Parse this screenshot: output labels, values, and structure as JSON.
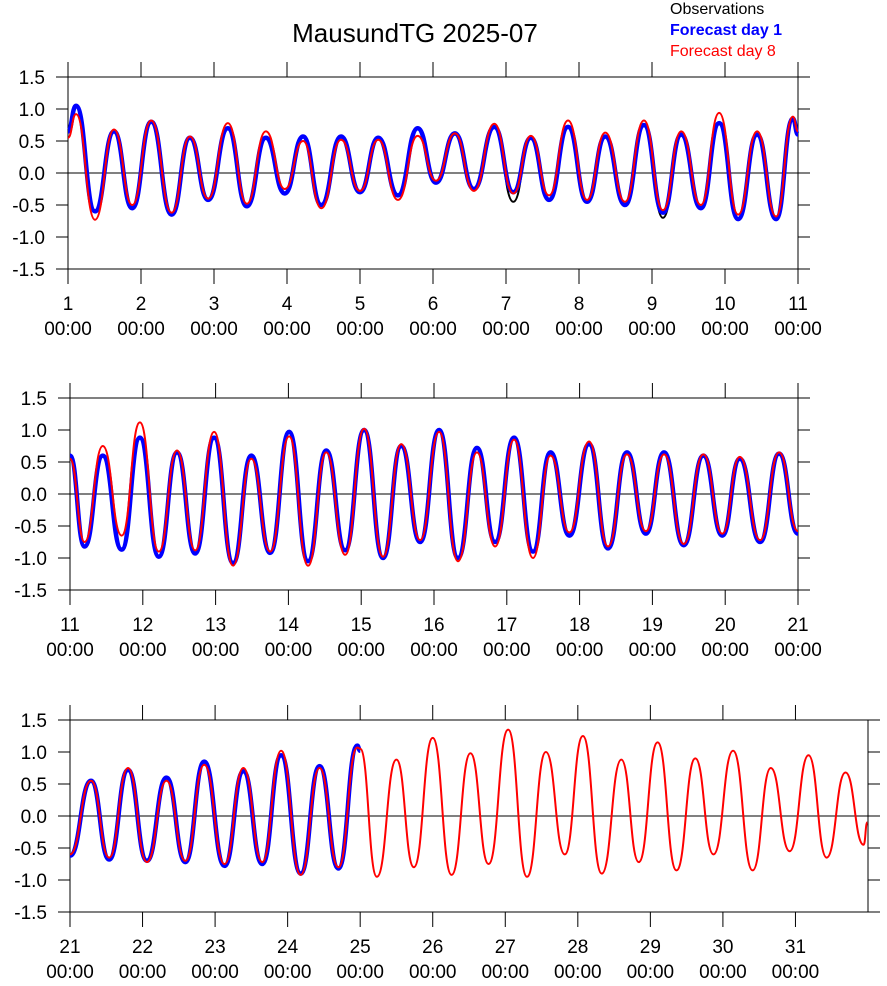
{
  "chart_data": [
    {
      "type": "line",
      "title": "MausundTG 2025-07",
      "legend": "upper right",
      "xlim": [
        1,
        11
      ],
      "ylim": [
        -1.5,
        1.5
      ],
      "xticks": [
        {
          "value": 1,
          "label": "1\n00:00"
        },
        {
          "value": 2,
          "label": "2\n00:00"
        },
        {
          "value": 3,
          "label": "3\n00:00"
        },
        {
          "value": 4,
          "label": "4\n00:00"
        },
        {
          "value": 5,
          "label": "5\n00:00"
        },
        {
          "value": 6,
          "label": "6\n00:00"
        },
        {
          "value": 7,
          "label": "7\n00:00"
        },
        {
          "value": 8,
          "label": "8\n00:00"
        },
        {
          "value": 9,
          "label": "9\n00:00"
        },
        {
          "value": 10,
          "label": "10\n00:00"
        },
        {
          "value": 11,
          "label": "11\n00:00"
        }
      ],
      "yticks": [
        -1.5,
        {
          "value": -1,
          "label": "-1.0"
        },
        -0.5,
        {
          "value": 0,
          "label": "0.0"
        },
        0.5,
        {
          "value": 1,
          "label": "1.0"
        },
        1.5
      ],
      "x": [
        1.0,
        1.11,
        1.37,
        1.63,
        1.88,
        2.14,
        2.42,
        2.67,
        2.92,
        3.19,
        3.45,
        3.71,
        3.97,
        4.22,
        4.47,
        4.74,
        5.0,
        5.25,
        5.52,
        5.79,
        6.04,
        6.3,
        6.56,
        6.84,
        7.1,
        7.34,
        7.59,
        7.85,
        8.11,
        8.36,
        8.63,
        8.89,
        9.15,
        9.4,
        9.67,
        9.92,
        10.18,
        10.44,
        10.7,
        10.93,
        11.0
      ],
      "series": [
        {
          "name": "Observations",
          "color": "#000000",
          "values": [
            0.65,
            1.05,
            -0.6,
            0.65,
            -0.55,
            0.8,
            -0.65,
            0.55,
            -0.42,
            0.7,
            -0.52,
            0.55,
            -0.32,
            0.57,
            -0.5,
            0.57,
            -0.3,
            0.55,
            -0.35,
            0.7,
            -0.15,
            0.62,
            -0.25,
            0.72,
            -0.45,
            0.55,
            -0.42,
            0.72,
            -0.45,
            0.57,
            -0.5,
            0.75,
            -0.7,
            0.6,
            -0.55,
            0.78,
            -0.72,
            0.6,
            -0.72,
            0.85,
            0.6
          ]
        },
        {
          "name": "Forecast day 1",
          "color": "#0000ff",
          "values": [
            0.65,
            1.05,
            -0.6,
            0.65,
            -0.55,
            0.8,
            -0.65,
            0.55,
            -0.42,
            0.7,
            -0.52,
            0.55,
            -0.32,
            0.57,
            -0.5,
            0.57,
            -0.3,
            0.55,
            -0.35,
            0.7,
            -0.15,
            0.62,
            -0.25,
            0.72,
            -0.3,
            0.55,
            -0.42,
            0.72,
            -0.45,
            0.57,
            -0.5,
            0.75,
            -0.62,
            0.6,
            -0.55,
            0.78,
            -0.72,
            0.6,
            -0.72,
            0.85,
            0.6
          ]
        },
        {
          "name": "Forecast day 8",
          "color": "#ff0000",
          "values": [
            0.55,
            0.92,
            -0.73,
            0.68,
            -0.5,
            0.82,
            -0.62,
            0.57,
            -0.4,
            0.78,
            -0.48,
            0.65,
            -0.25,
            0.5,
            -0.55,
            0.52,
            -0.28,
            0.52,
            -0.42,
            0.58,
            -0.12,
            0.62,
            -0.28,
            0.77,
            -0.32,
            0.58,
            -0.35,
            0.82,
            -0.42,
            0.63,
            -0.45,
            0.82,
            -0.58,
            0.65,
            -0.5,
            0.94,
            -0.65,
            0.65,
            -0.68,
            0.88,
            0.65
          ]
        }
      ]
    },
    {
      "type": "line",
      "xlim": [
        11,
        21
      ],
      "ylim": [
        -1.5,
        1.5
      ],
      "xticks": [
        {
          "value": 11,
          "label": "11\n00:00"
        },
        {
          "value": 12,
          "label": "12\n00:00"
        },
        {
          "value": 13,
          "label": "13\n00:00"
        },
        {
          "value": 14,
          "label": "14\n00:00"
        },
        {
          "value": 15,
          "label": "15\n00:00"
        },
        {
          "value": 16,
          "label": "16\n00:00"
        },
        {
          "value": 17,
          "label": "17\n00:00"
        },
        {
          "value": 18,
          "label": "18\n00:00"
        },
        {
          "value": 19,
          "label": "19\n00:00"
        },
        {
          "value": 20,
          "label": "20\n00:00"
        },
        {
          "value": 21,
          "label": "21\n00:00"
        }
      ],
      "yticks": [
        -1.5,
        {
          "value": -1,
          "label": "-1.0"
        },
        -0.5,
        {
          "value": 0,
          "label": "0.0"
        },
        0.5,
        {
          "value": 1,
          "label": "1.0"
        },
        1.5
      ],
      "x": [
        11.0,
        11.2,
        11.45,
        11.71,
        11.96,
        12.22,
        12.47,
        12.72,
        12.98,
        13.24,
        13.49,
        13.75,
        14.01,
        14.27,
        14.52,
        14.78,
        15.04,
        15.3,
        15.55,
        15.81,
        16.07,
        16.33,
        16.59,
        16.84,
        17.1,
        17.36,
        17.6,
        17.86,
        18.13,
        18.39,
        18.65,
        18.91,
        19.16,
        19.43,
        19.7,
        19.96,
        20.2,
        20.48,
        20.74,
        21.0
      ],
      "series": [
        {
          "color": "#000000",
          "values": [
            0.6,
            -0.82,
            0.6,
            -0.87,
            0.88,
            -0.98,
            0.65,
            -0.93,
            0.88,
            -1.08,
            0.6,
            -0.92,
            0.97,
            -1.05,
            0.68,
            -0.88,
            1.0,
            -1.0,
            0.75,
            -0.75,
            1.0,
            -1.0,
            0.72,
            -0.75,
            0.88,
            -0.9,
            0.65,
            -0.65,
            0.78,
            -0.85,
            0.65,
            -0.62,
            0.65,
            -0.8,
            0.6,
            -0.65,
            0.55,
            -0.75,
            0.63,
            -0.62
          ]
        },
        {
          "color": "#0000ff",
          "values": [
            0.6,
            -0.82,
            0.6,
            -0.87,
            0.88,
            -0.98,
            0.65,
            -0.93,
            0.88,
            -1.08,
            0.6,
            -0.92,
            0.97,
            -1.05,
            0.68,
            -0.88,
            1.0,
            -1.0,
            0.75,
            -0.75,
            1.0,
            -1.0,
            0.72,
            -0.75,
            0.88,
            -0.9,
            0.65,
            -0.65,
            0.78,
            -0.85,
            0.65,
            -0.62,
            0.65,
            -0.8,
            0.6,
            -0.65,
            0.55,
            -0.75,
            0.63,
            -0.62
          ]
        },
        {
          "color": "#ff0000",
          "values": [
            0.55,
            -0.75,
            0.75,
            -0.65,
            1.12,
            -0.9,
            0.68,
            -0.88,
            0.97,
            -1.12,
            0.55,
            -0.9,
            0.9,
            -1.12,
            0.65,
            -0.95,
            1.02,
            -0.98,
            0.78,
            -0.72,
            0.97,
            -1.05,
            0.65,
            -0.82,
            0.85,
            -1.0,
            0.6,
            -0.6,
            0.82,
            -0.82,
            0.62,
            -0.58,
            0.62,
            -0.78,
            0.62,
            -0.62,
            0.58,
            -0.72,
            0.65,
            -0.58
          ]
        }
      ]
    },
    {
      "type": "line",
      "xlim": [
        21,
        32
      ],
      "ylim": [
        -1.5,
        1.5
      ],
      "xticks": [
        {
          "value": 21,
          "label": "21\n00:00"
        },
        {
          "value": 22,
          "label": "22\n00:00"
        },
        {
          "value": 23,
          "label": "23\n00:00"
        },
        {
          "value": 24,
          "label": "24\n00:00"
        },
        {
          "value": 25,
          "label": "25\n00:00"
        },
        {
          "value": 26,
          "label": "26\n00:00"
        },
        {
          "value": 27,
          "label": "27\n00:00"
        },
        {
          "value": 28,
          "label": "28\n00:00"
        },
        {
          "value": 29,
          "label": "29\n00:00"
        },
        {
          "value": 30,
          "label": "30\n00:00"
        },
        {
          "value": 31,
          "label": "31\n00:00"
        }
      ],
      "yticks": [
        -1.5,
        {
          "value": -1,
          "label": "-1.0"
        },
        -0.5,
        {
          "value": 0,
          "label": "0.0"
        },
        0.5,
        {
          "value": 1,
          "label": "1.0"
        },
        1.5
      ],
      "x": [
        21.0,
        21.29,
        21.54,
        21.8,
        22.06,
        22.33,
        22.59,
        22.85,
        23.13,
        23.39,
        23.65,
        23.91,
        24.18,
        24.44,
        24.7,
        24.96,
        25.0,
        25.23,
        25.5,
        25.74,
        26.0,
        26.26,
        26.52,
        26.77,
        27.04,
        27.3,
        27.56,
        27.82,
        28.07,
        28.33,
        28.6,
        28.84,
        29.1,
        29.36,
        29.62,
        29.87,
        30.14,
        30.41,
        30.66,
        30.92,
        31.18,
        31.43,
        31.69,
        31.94,
        31.99
      ],
      "series": [
        {
          "color": "#000000",
          "values": [
            -0.62,
            0.55,
            -0.68,
            0.72,
            -0.7,
            0.6,
            -0.72,
            0.85,
            -0.78,
            0.7,
            -0.75,
            0.95,
            -0.9,
            0.78,
            -0.82,
            1.1,
            1.02,
            null,
            null,
            null,
            null,
            null,
            null,
            null,
            null,
            null,
            null,
            null,
            null,
            null,
            null,
            null,
            null,
            null,
            null,
            null,
            null,
            null,
            null,
            null,
            null,
            null,
            null,
            null,
            null
          ]
        },
        {
          "color": "#0000ff",
          "values": [
            -0.62,
            0.55,
            -0.68,
            0.72,
            -0.7,
            0.6,
            -0.72,
            0.85,
            -0.78,
            0.7,
            -0.75,
            0.95,
            -0.9,
            0.78,
            -0.82,
            1.1,
            1.02,
            null,
            null,
            null,
            null,
            null,
            null,
            null,
            null,
            null,
            null,
            null,
            null,
            null,
            null,
            null,
            null,
            null,
            null,
            null,
            null,
            null,
            null,
            null,
            null,
            null,
            null,
            null,
            null
          ]
        },
        {
          "color": "#ff0000",
          "values": [
            -0.6,
            0.55,
            -0.65,
            0.75,
            -0.72,
            0.55,
            -0.7,
            0.8,
            -0.75,
            0.75,
            -0.72,
            1.02,
            -0.92,
            0.75,
            -0.8,
            1.07,
            1.05,
            -0.95,
            0.88,
            -0.8,
            1.22,
            -0.92,
            0.98,
            -0.75,
            1.35,
            -0.95,
            1.0,
            -0.6,
            1.25,
            -0.9,
            0.88,
            -0.72,
            1.15,
            -0.85,
            0.9,
            -0.6,
            1.02,
            -0.85,
            0.75,
            -0.55,
            0.95,
            -0.65,
            0.68,
            -0.45,
            -0.1
          ]
        }
      ]
    }
  ]
}
